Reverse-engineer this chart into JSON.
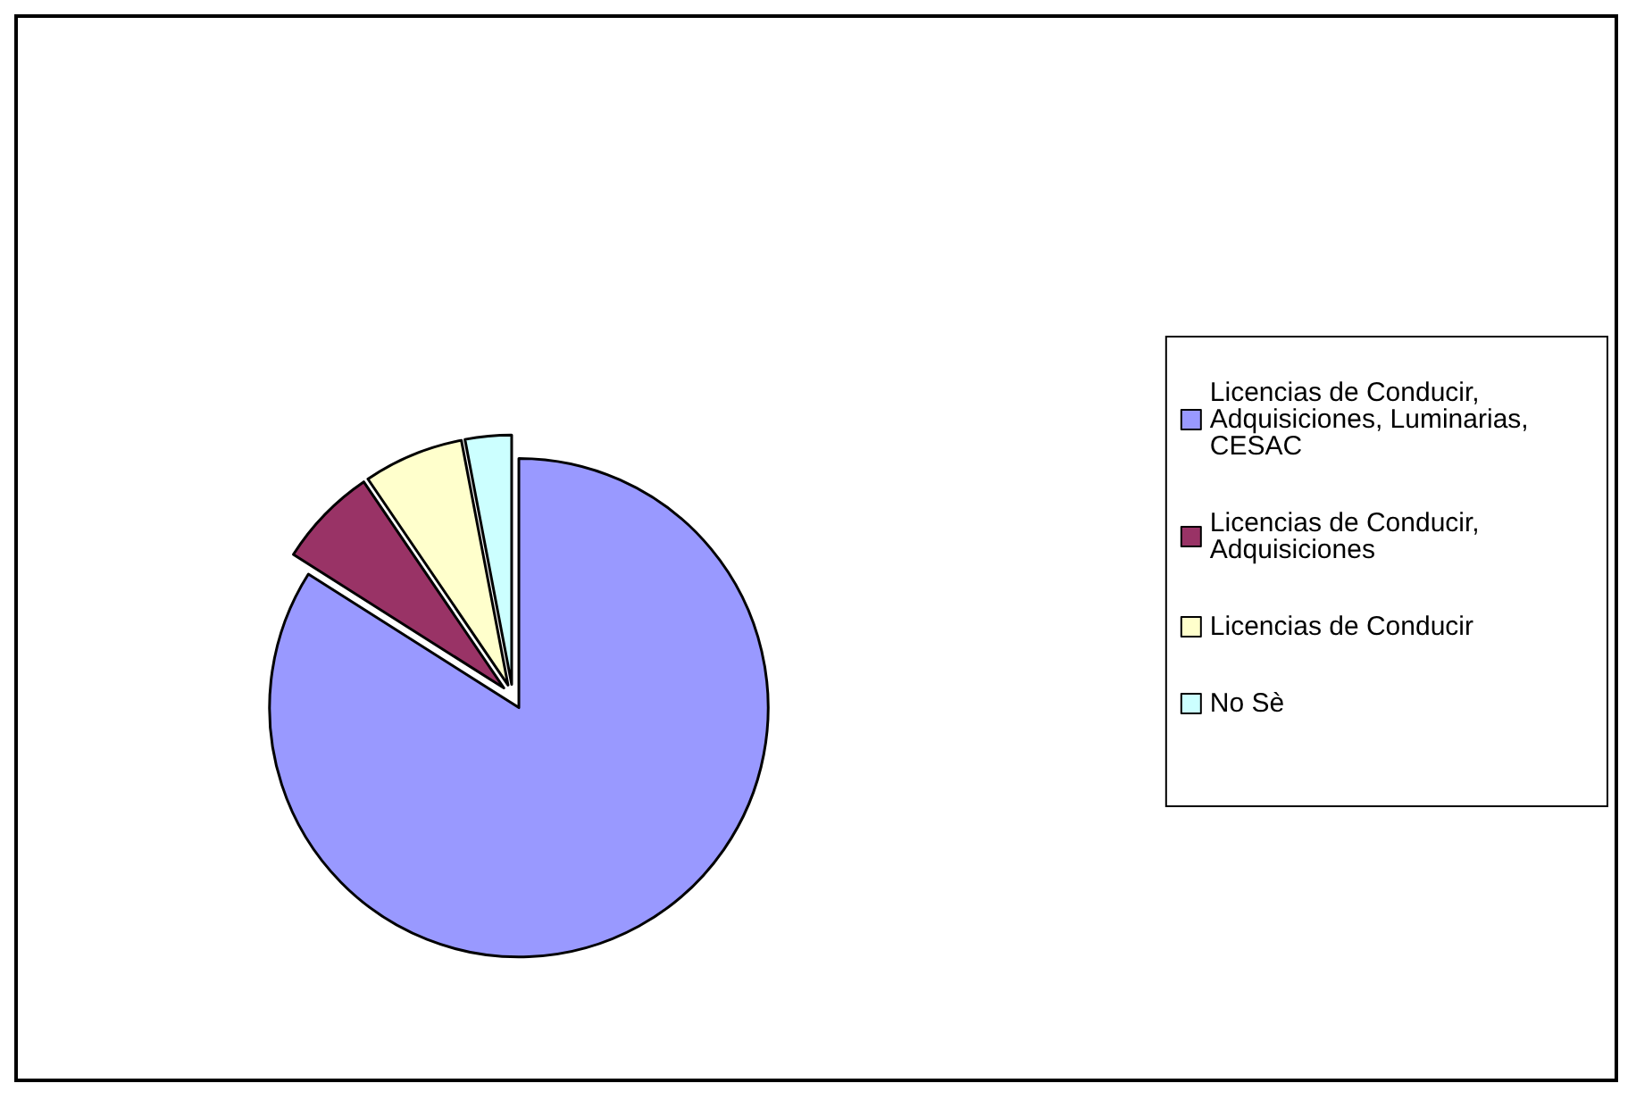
{
  "chart_data": {
    "type": "pie",
    "categories": [
      "Licencias de Conducir, Adquisiciones, Luminarias, CESAC",
      "Licencias de Conducir, Adquisiciones",
      "Licencias de Conducir",
      "No Sè"
    ],
    "values": [
      84,
      6.5,
      6.5,
      3
    ],
    "colors": [
      "#9999ff",
      "#993366",
      "#ffffcc",
      "#ccffff"
    ],
    "legend": "right"
  }
}
